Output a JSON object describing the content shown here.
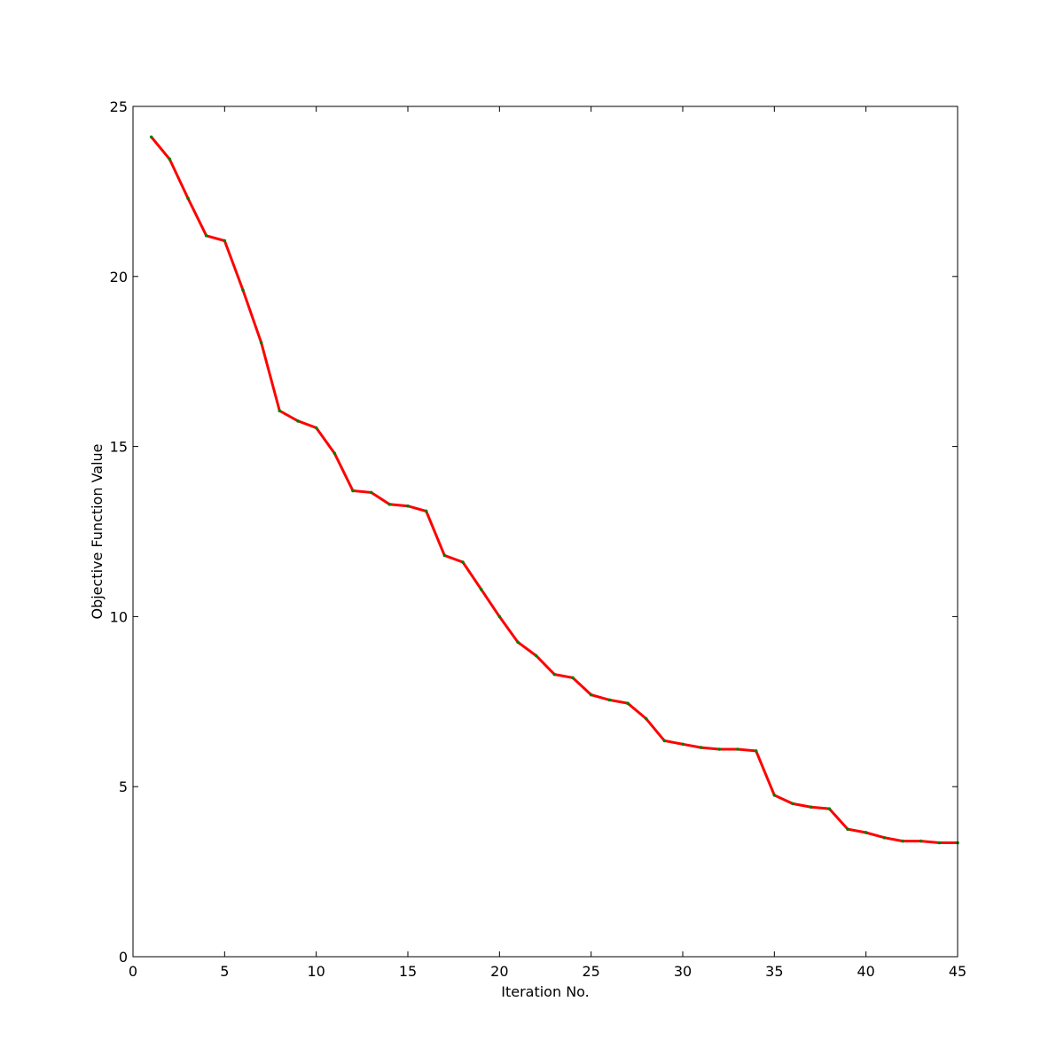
{
  "chart_data": {
    "type": "line",
    "title": "",
    "xlabel": "Iteration No.",
    "ylabel": "Objective Function Value",
    "xlim": [
      0,
      45
    ],
    "ylim": [
      0,
      25
    ],
    "xticks": [
      0,
      5,
      10,
      15,
      20,
      25,
      30,
      35,
      40,
      45
    ],
    "yticks": [
      0,
      5,
      10,
      15,
      20,
      25
    ],
    "grid": false,
    "line_color": "#ff0000",
    "marker_color": "#008000",
    "series": [
      {
        "x": [
          1,
          2,
          3,
          4,
          5,
          6,
          7,
          8,
          9,
          10,
          11,
          12,
          13,
          14,
          15,
          16,
          17,
          18,
          19,
          20,
          21,
          22,
          23,
          24,
          25,
          26,
          27,
          28,
          29,
          30,
          31,
          32,
          33,
          34,
          35,
          36,
          37,
          38,
          39,
          40,
          41,
          42,
          43,
          44,
          45
        ],
        "values": [
          24.1,
          23.45,
          22.3,
          21.2,
          21.05,
          19.6,
          18.05,
          16.05,
          15.75,
          15.55,
          14.8,
          13.7,
          13.65,
          13.3,
          13.25,
          13.1,
          11.8,
          11.6,
          10.8,
          10.0,
          9.25,
          8.85,
          8.3,
          8.2,
          7.7,
          7.55,
          7.45,
          7.0,
          6.35,
          6.25,
          6.15,
          6.1,
          6.1,
          6.05,
          4.75,
          4.5,
          4.4,
          4.35,
          3.75,
          3.65,
          3.5,
          3.4,
          3.4,
          3.35,
          3.35
        ]
      }
    ]
  }
}
